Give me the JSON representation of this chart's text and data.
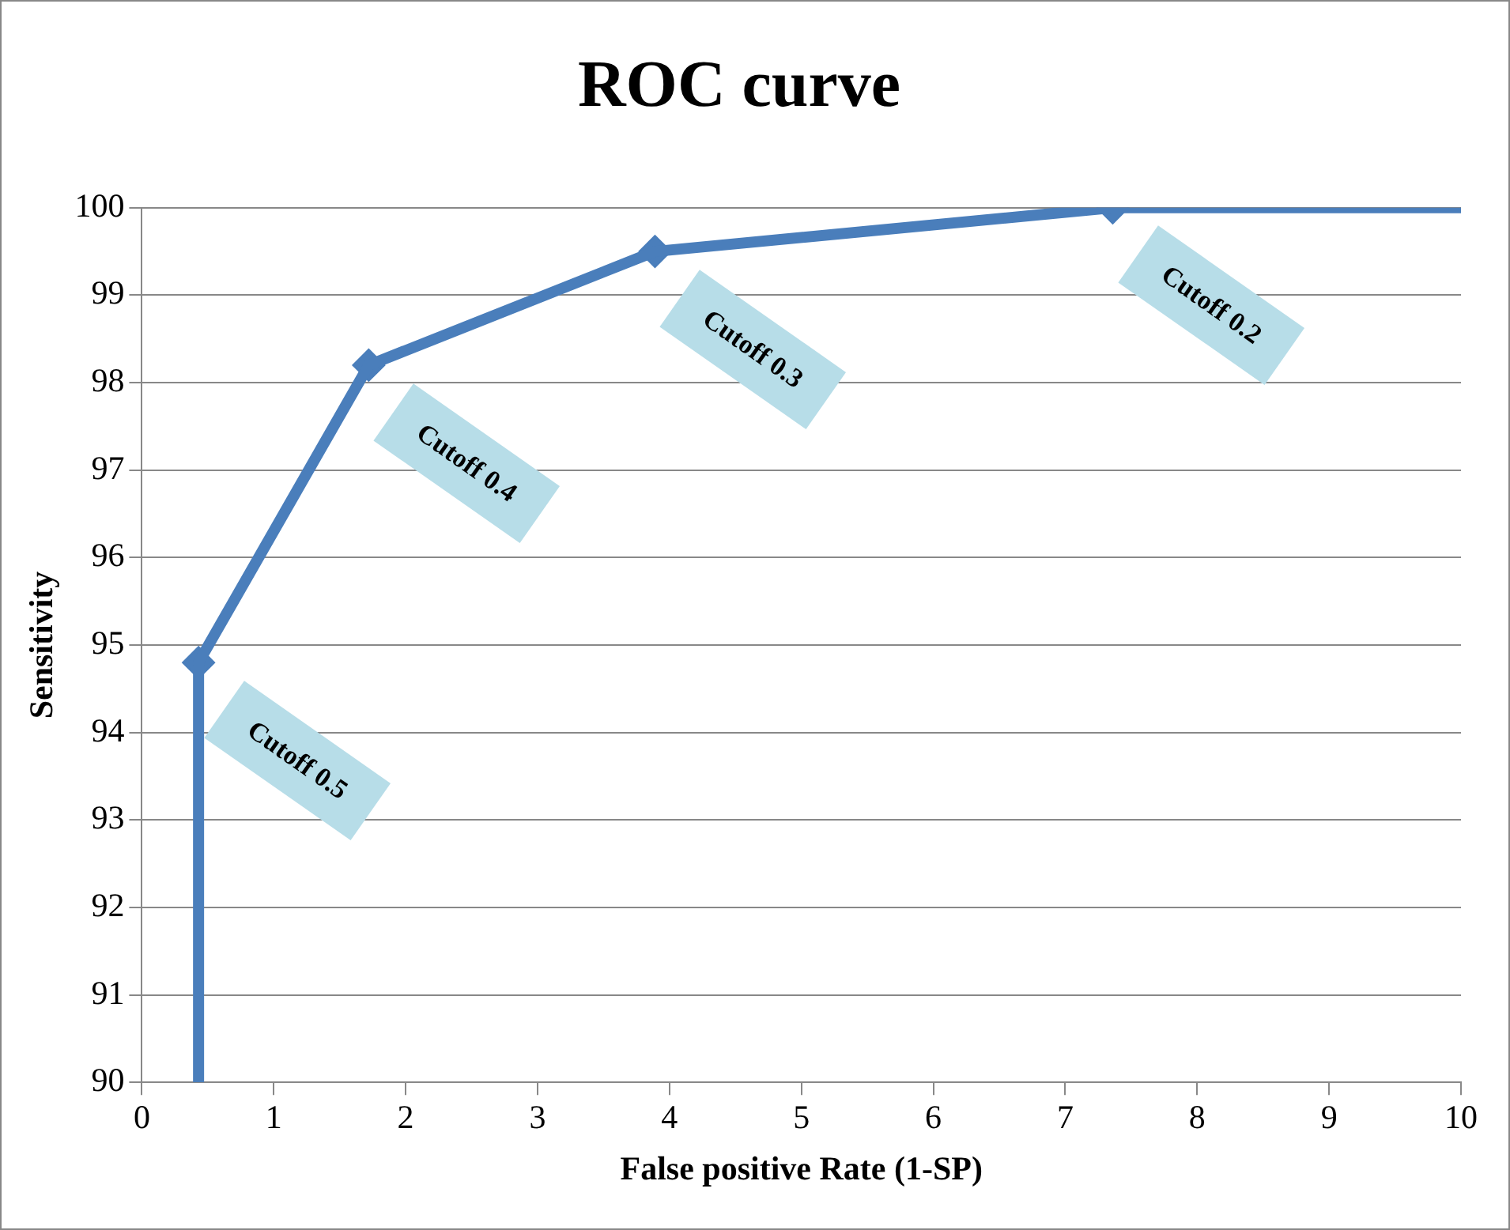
{
  "chart_data": {
    "type": "line",
    "title": "ROC curve",
    "xlabel": "False positive Rate (1-SP)",
    "ylabel": "Sensitivity",
    "xlim": [
      0,
      10
    ],
    "xticks": [
      0,
      1,
      2,
      3,
      4,
      5,
      6,
      7,
      8,
      9,
      10
    ],
    "ylim": [
      90,
      100
    ],
    "yticks": [
      90,
      91,
      92,
      93,
      94,
      95,
      96,
      97,
      98,
      99,
      100
    ],
    "grid": "y",
    "legend": false,
    "series": [
      {
        "color": "#4a7ebb",
        "marker": "none",
        "line_style": "solid",
        "x": [
          0.43,
          0.43,
          1.72,
          3.89,
          7.36,
          10
        ],
        "values": [
          90,
          94.8,
          98.2,
          99.5,
          100,
          100
        ]
      },
      {
        "type": "scatter",
        "color": "#4a7ebb",
        "marker": "diamond",
        "x": [
          0.43,
          1.72,
          3.89,
          7.36
        ],
        "values": [
          94.8,
          98.2,
          99.5,
          100
        ]
      }
    ],
    "annotations": [
      {
        "text": "Cutoff 0.5",
        "x": 0.43,
        "y": 94.8
      },
      {
        "text": "Cutoff 0.4",
        "x": 1.72,
        "y": 98.2
      },
      {
        "text": "Cutoff 0.3",
        "x": 3.89,
        "y": 99.5
      },
      {
        "text": "Cutoff 0.2",
        "x": 7.36,
        "y": 100
      }
    ]
  }
}
